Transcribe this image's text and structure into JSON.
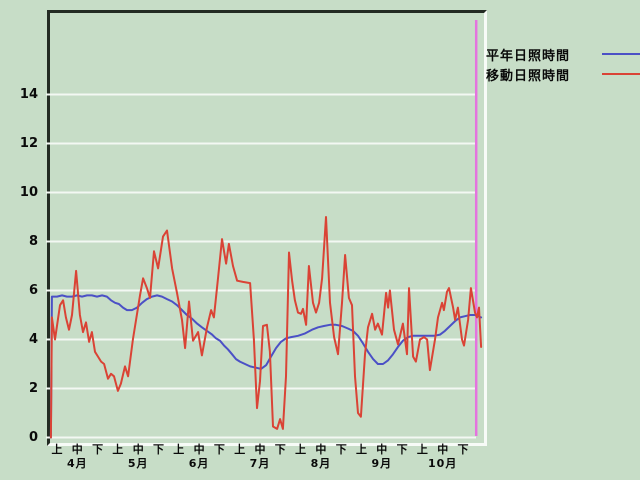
{
  "page": {
    "background_color": "#c7ddc7",
    "frame_dark_color": "#232b23",
    "frame_light_color": "#f7fbf7"
  },
  "legend": {
    "items": [
      {
        "label": "平年日照時間"
      },
      {
        "label": "移動日照時間"
      }
    ]
  },
  "chart_data": {
    "type": "line",
    "title": "",
    "xlabel": "",
    "ylabel": "",
    "grid": true,
    "grid_color": "#f3f8f3",
    "legend_position": "top-right",
    "ylim": [
      0,
      17.4
    ],
    "yticks": [
      0,
      2,
      4,
      6,
      8,
      10,
      12,
      14
    ],
    "x_months": [
      "4月",
      "5月",
      "6月",
      "7月",
      "8月",
      "9月",
      "10月"
    ],
    "x_periods": [
      "上",
      "中",
      "下"
    ],
    "cursor_u": 20.65,
    "cursor_color": "#e473de",
    "series": [
      {
        "name": "平年日照時間",
        "color": "#4b50c6",
        "points": [
          [
            -0.3,
            0
          ],
          [
            -0.25,
            5.75
          ],
          [
            0,
            5.75
          ],
          [
            0.25,
            5.8
          ],
          [
            0.49,
            5.75
          ],
          [
            0.74,
            5.75
          ],
          [
            0.99,
            5.8
          ],
          [
            1.23,
            5.75
          ],
          [
            1.48,
            5.8
          ],
          [
            1.72,
            5.8
          ],
          [
            1.97,
            5.75
          ],
          [
            2.22,
            5.8
          ],
          [
            2.46,
            5.75
          ],
          [
            2.66,
            5.6
          ],
          [
            2.86,
            5.5
          ],
          [
            3.05,
            5.45
          ],
          [
            3.25,
            5.3
          ],
          [
            3.45,
            5.2
          ],
          [
            3.69,
            5.2
          ],
          [
            3.94,
            5.3
          ],
          [
            4.19,
            5.5
          ],
          [
            4.43,
            5.65
          ],
          [
            4.68,
            5.75
          ],
          [
            4.93,
            5.8
          ],
          [
            5.17,
            5.75
          ],
          [
            5.42,
            5.65
          ],
          [
            5.67,
            5.55
          ],
          [
            5.91,
            5.4
          ],
          [
            6.16,
            5.2
          ],
          [
            6.4,
            5.0
          ],
          [
            6.65,
            4.85
          ],
          [
            6.9,
            4.65
          ],
          [
            7.14,
            4.5
          ],
          [
            7.39,
            4.35
          ],
          [
            7.64,
            4.2
          ],
          [
            7.83,
            4.05
          ],
          [
            8.03,
            3.95
          ],
          [
            8.23,
            3.75
          ],
          [
            8.42,
            3.6
          ],
          [
            8.62,
            3.4
          ],
          [
            8.82,
            3.2
          ],
          [
            9.01,
            3.1
          ],
          [
            9.26,
            3.0
          ],
          [
            9.51,
            2.9
          ],
          [
            9.8,
            2.85
          ],
          [
            10.05,
            2.8
          ],
          [
            10.3,
            2.95
          ],
          [
            10.54,
            3.3
          ],
          [
            10.79,
            3.65
          ],
          [
            11.03,
            3.9
          ],
          [
            11.28,
            4.05
          ],
          [
            11.53,
            4.1
          ],
          [
            11.87,
            4.15
          ],
          [
            12.22,
            4.25
          ],
          [
            12.56,
            4.4
          ],
          [
            12.86,
            4.5
          ],
          [
            13.15,
            4.55
          ],
          [
            13.45,
            4.6
          ],
          [
            13.74,
            4.6
          ],
          [
            14.04,
            4.55
          ],
          [
            14.33,
            4.45
          ],
          [
            14.58,
            4.35
          ],
          [
            14.83,
            4.15
          ],
          [
            15.07,
            3.85
          ],
          [
            15.32,
            3.5
          ],
          [
            15.57,
            3.2
          ],
          [
            15.81,
            3.0
          ],
          [
            16.06,
            3.0
          ],
          [
            16.31,
            3.15
          ],
          [
            16.55,
            3.4
          ],
          [
            16.8,
            3.7
          ],
          [
            17.04,
            3.95
          ],
          [
            17.29,
            4.1
          ],
          [
            17.54,
            4.15
          ],
          [
            17.88,
            4.15
          ],
          [
            18.23,
            4.15
          ],
          [
            18.57,
            4.15
          ],
          [
            18.87,
            4.2
          ],
          [
            19.11,
            4.35
          ],
          [
            19.36,
            4.55
          ],
          [
            19.61,
            4.75
          ],
          [
            19.85,
            4.9
          ],
          [
            20.1,
            4.95
          ],
          [
            20.34,
            5.0
          ],
          [
            20.59,
            5.0
          ],
          [
            20.89,
            4.9
          ]
        ]
      },
      {
        "name": "移動日照時間",
        "color": "#da4335",
        "points": [
          [
            -0.3,
            0
          ],
          [
            -0.25,
            4.9
          ],
          [
            -0.1,
            4.0
          ],
          [
            0.15,
            5.4
          ],
          [
            0.3,
            5.6
          ],
          [
            0.44,
            4.9
          ],
          [
            0.59,
            4.4
          ],
          [
            0.74,
            5.0
          ],
          [
            0.94,
            6.8
          ],
          [
            1.13,
            5.0
          ],
          [
            1.28,
            4.3
          ],
          [
            1.43,
            4.7
          ],
          [
            1.58,
            3.9
          ],
          [
            1.72,
            4.3
          ],
          [
            1.87,
            3.5
          ],
          [
            2.02,
            3.3
          ],
          [
            2.17,
            3.1
          ],
          [
            2.32,
            3.0
          ],
          [
            2.51,
            2.4
          ],
          [
            2.66,
            2.6
          ],
          [
            2.81,
            2.5
          ],
          [
            3.0,
            1.9
          ],
          [
            3.15,
            2.2
          ],
          [
            3.35,
            2.9
          ],
          [
            3.5,
            2.5
          ],
          [
            3.74,
            4.0
          ],
          [
            4.09,
            5.8
          ],
          [
            4.24,
            6.5
          ],
          [
            4.43,
            6.1
          ],
          [
            4.58,
            5.7
          ],
          [
            4.78,
            7.6
          ],
          [
            4.98,
            6.9
          ],
          [
            5.22,
            8.2
          ],
          [
            5.42,
            8.45
          ],
          [
            5.67,
            6.9
          ],
          [
            5.91,
            5.9
          ],
          [
            6.16,
            4.8
          ],
          [
            6.31,
            3.65
          ],
          [
            6.5,
            5.55
          ],
          [
            6.7,
            3.95
          ],
          [
            6.95,
            4.3
          ],
          [
            7.14,
            3.35
          ],
          [
            7.39,
            4.5
          ],
          [
            7.59,
            5.2
          ],
          [
            7.73,
            4.9
          ],
          [
            7.93,
            6.5
          ],
          [
            8.13,
            8.1
          ],
          [
            8.33,
            7.1
          ],
          [
            8.47,
            7.9
          ],
          [
            8.67,
            7.0
          ],
          [
            8.87,
            6.4
          ],
          [
            9.16,
            6.35
          ],
          [
            9.51,
            6.3
          ],
          [
            9.7,
            4.0
          ],
          [
            9.85,
            1.2
          ],
          [
            10.0,
            2.3
          ],
          [
            10.15,
            4.55
          ],
          [
            10.34,
            4.6
          ],
          [
            10.49,
            3.5
          ],
          [
            10.64,
            0.45
          ],
          [
            10.84,
            0.35
          ],
          [
            10.99,
            0.75
          ],
          [
            11.13,
            0.35
          ],
          [
            11.28,
            2.5
          ],
          [
            11.43,
            7.55
          ],
          [
            11.58,
            6.4
          ],
          [
            11.72,
            5.6
          ],
          [
            11.87,
            5.1
          ],
          [
            12.02,
            5.05
          ],
          [
            12.12,
            5.25
          ],
          [
            12.27,
            4.6
          ],
          [
            12.41,
            7.0
          ],
          [
            12.61,
            5.5
          ],
          [
            12.76,
            5.1
          ],
          [
            12.91,
            5.5
          ],
          [
            13.06,
            6.5
          ],
          [
            13.25,
            9.0
          ],
          [
            13.45,
            5.5
          ],
          [
            13.65,
            4.1
          ],
          [
            13.84,
            3.4
          ],
          [
            14.04,
            5.5
          ],
          [
            14.19,
            7.45
          ],
          [
            14.38,
            5.7
          ],
          [
            14.53,
            5.4
          ],
          [
            14.68,
            2.5
          ],
          [
            14.83,
            1.0
          ],
          [
            14.97,
            0.85
          ],
          [
            15.17,
            3.4
          ],
          [
            15.32,
            4.5
          ],
          [
            15.52,
            5.05
          ],
          [
            15.67,
            4.4
          ],
          [
            15.81,
            4.65
          ],
          [
            16.01,
            4.2
          ],
          [
            16.21,
            5.9
          ],
          [
            16.31,
            5.3
          ],
          [
            16.4,
            6.0
          ],
          [
            16.6,
            4.4
          ],
          [
            16.8,
            3.8
          ],
          [
            17.04,
            4.65
          ],
          [
            17.24,
            3.4
          ],
          [
            17.34,
            6.1
          ],
          [
            17.54,
            3.3
          ],
          [
            17.68,
            3.1
          ],
          [
            17.88,
            4.0
          ],
          [
            18.08,
            4.1
          ],
          [
            18.23,
            4.0
          ],
          [
            18.37,
            2.75
          ],
          [
            18.62,
            4.0
          ],
          [
            18.77,
            4.9
          ],
          [
            18.97,
            5.5
          ],
          [
            19.06,
            5.2
          ],
          [
            19.21,
            5.95
          ],
          [
            19.31,
            6.1
          ],
          [
            19.51,
            5.3
          ],
          [
            19.61,
            4.8
          ],
          [
            19.75,
            5.3
          ],
          [
            19.95,
            4.0
          ],
          [
            20.05,
            3.75
          ],
          [
            20.25,
            4.8
          ],
          [
            20.39,
            6.1
          ],
          [
            20.59,
            5.1
          ],
          [
            20.69,
            4.9
          ],
          [
            20.79,
            5.3
          ],
          [
            20.89,
            3.7
          ]
        ]
      }
    ]
  }
}
